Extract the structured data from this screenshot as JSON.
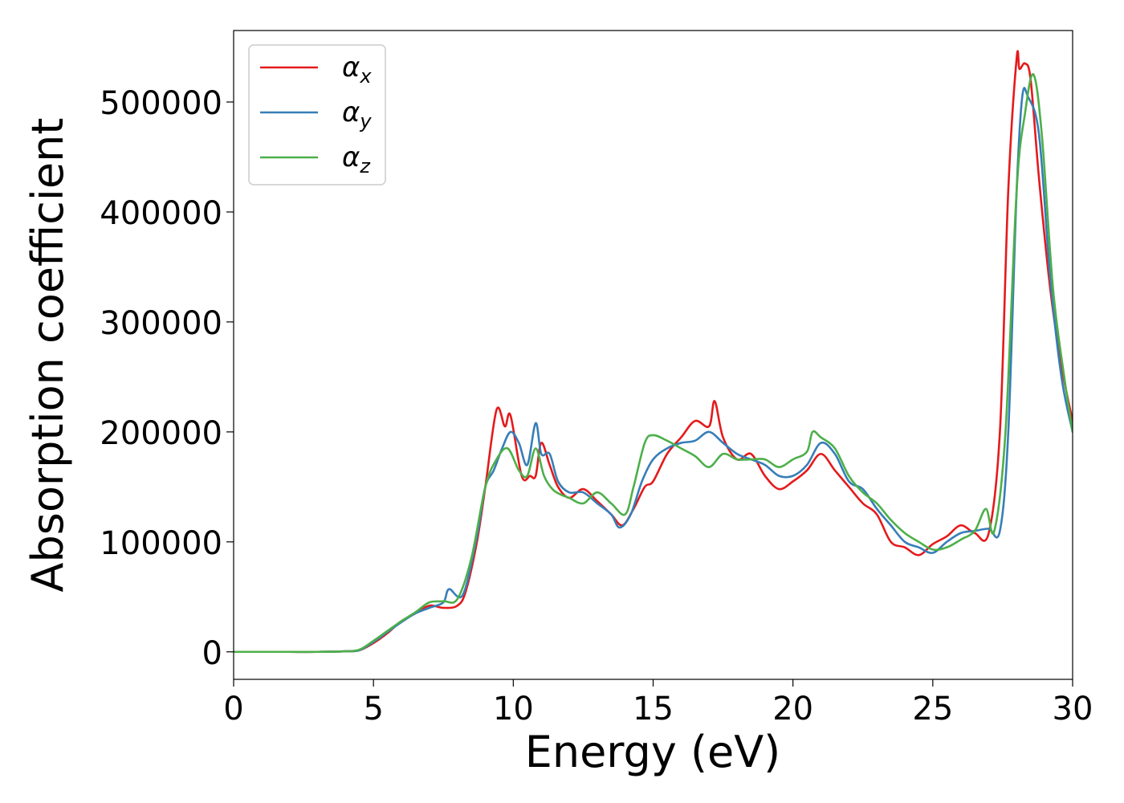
{
  "chart_data": {
    "type": "line",
    "title": "",
    "xlabel": "Energy (eV)",
    "ylabel": "Absorption coefficient",
    "xlim": [
      0,
      30
    ],
    "ylim": [
      -25000,
      565000
    ],
    "xticks": [
      0,
      5,
      10,
      15,
      20,
      25,
      30
    ],
    "xtick_labels": [
      "0",
      "5",
      "10",
      "15",
      "20",
      "25",
      "30"
    ],
    "yticks": [
      0,
      100000,
      200000,
      300000,
      400000,
      500000
    ],
    "ytick_labels": [
      "0",
      "100000",
      "200000",
      "300000",
      "400000",
      "500000"
    ],
    "grid": false,
    "legend_position": "top-left",
    "series": [
      {
        "name": "αx",
        "legend_symbol": "α",
        "legend_subscript": "x",
        "color": "#e41a1c",
        "x": [
          0,
          1,
          2,
          3,
          4,
          4.5,
          5,
          5.5,
          6,
          6.5,
          7,
          7.5,
          8,
          8.3,
          8.7,
          9,
          9.4,
          9.7,
          9.9,
          10.3,
          10.6,
          10.8,
          11,
          11.3,
          11.6,
          12,
          12.5,
          13,
          13.5,
          13.9,
          14.3,
          14.7,
          15,
          15.5,
          16,
          16.5,
          17,
          17.2,
          17.5,
          18,
          18.5,
          19,
          19.5,
          20,
          20.5,
          21,
          21.5,
          22,
          22.5,
          23,
          23.5,
          24,
          24.5,
          25,
          25.5,
          26,
          26.5,
          27,
          27.4,
          27.7,
          28,
          28.1,
          28.3,
          28.5,
          28.8,
          29.2,
          29.6,
          30
        ],
        "y": [
          0,
          0,
          0,
          0,
          500,
          1500,
          8000,
          17000,
          28000,
          35000,
          42000,
          40000,
          42000,
          55000,
          100000,
          150000,
          220000,
          205000,
          215000,
          160000,
          160000,
          160000,
          190000,
          170000,
          150000,
          140000,
          148000,
          137000,
          125000,
          115000,
          130000,
          150000,
          155000,
          180000,
          195000,
          210000,
          205000,
          228000,
          195000,
          175000,
          180000,
          160000,
          148000,
          155000,
          165000,
          180000,
          165000,
          150000,
          135000,
          125000,
          100000,
          95000,
          88000,
          98000,
          105000,
          115000,
          108000,
          108000,
          200000,
          420000,
          540000,
          530000,
          535000,
          520000,
          430000,
          330000,
          260000,
          210000
        ]
      },
      {
        "name": "αy",
        "legend_symbol": "α",
        "legend_subscript": "y",
        "color": "#377eb8",
        "x": [
          0,
          1,
          2,
          3,
          4,
          4.5,
          5,
          5.5,
          6,
          6.5,
          7,
          7.5,
          7.7,
          8.2,
          8.7,
          9,
          9.3,
          9.6,
          9.9,
          10.2,
          10.5,
          10.8,
          11,
          11.3,
          11.6,
          12,
          12.5,
          13,
          13.5,
          13.8,
          14.2,
          14.6,
          15,
          15.5,
          16,
          16.5,
          17,
          17.5,
          18,
          18.5,
          19,
          19.5,
          20,
          20.5,
          21,
          21.5,
          22,
          22.5,
          23,
          23.5,
          24,
          24.5,
          25,
          25.5,
          26,
          26.5,
          27,
          27.4,
          27.7,
          28,
          28.2,
          28.4,
          28.8,
          29.2,
          29.6,
          30
        ],
        "y": [
          0,
          0,
          0,
          0,
          500,
          1500,
          9000,
          18000,
          27000,
          35000,
          40000,
          45000,
          57000,
          52000,
          105000,
          150000,
          165000,
          185000,
          200000,
          190000,
          170000,
          208000,
          180000,
          180000,
          155000,
          145000,
          145000,
          135000,
          125000,
          113000,
          125000,
          155000,
          175000,
          185000,
          190000,
          192000,
          200000,
          190000,
          180000,
          175000,
          170000,
          160000,
          160000,
          170000,
          190000,
          180000,
          155000,
          148000,
          130000,
          115000,
          100000,
          95000,
          90000,
          100000,
          108000,
          110000,
          112000,
          110000,
          200000,
          420000,
          505000,
          505000,
          470000,
          340000,
          250000,
          200000
        ]
      },
      {
        "name": "αz",
        "legend_symbol": "α",
        "legend_subscript": "z",
        "color": "#4daf4a",
        "x": [
          0,
          1,
          2,
          3,
          4,
          4.5,
          5,
          5.5,
          6,
          6.5,
          7,
          7.5,
          8,
          8.5,
          9,
          9.4,
          9.8,
          10.2,
          10.5,
          10.8,
          11.1,
          11.4,
          11.7,
          12,
          12.5,
          13,
          13.5,
          14,
          14.3,
          14.7,
          15,
          15.5,
          16,
          16.5,
          17,
          17.5,
          18,
          18.5,
          19,
          19.5,
          20,
          20.5,
          20.7,
          21,
          21.5,
          22,
          22.5,
          23,
          23.5,
          24,
          24.5,
          25,
          25.5,
          26,
          26.5,
          26.9,
          27.2,
          27.6,
          28,
          28.3,
          28.6,
          28.9,
          29.3,
          29.7,
          30
        ],
        "y": [
          0,
          0,
          0,
          0,
          500,
          2000,
          10000,
          19000,
          28000,
          36000,
          45000,
          46000,
          48000,
          85000,
          150000,
          175000,
          185000,
          165000,
          160000,
          185000,
          160000,
          148000,
          143000,
          140000,
          135000,
          145000,
          135000,
          125000,
          150000,
          190000,
          197000,
          192000,
          185000,
          178000,
          168000,
          180000,
          175000,
          175000,
          175000,
          168000,
          175000,
          182000,
          200000,
          195000,
          185000,
          160000,
          145000,
          135000,
          120000,
          108000,
          100000,
          93000,
          95000,
          102000,
          110000,
          130000,
          110000,
          200000,
          420000,
          490000,
          525000,
          470000,
          330000,
          250000,
          200000
        ]
      }
    ]
  }
}
